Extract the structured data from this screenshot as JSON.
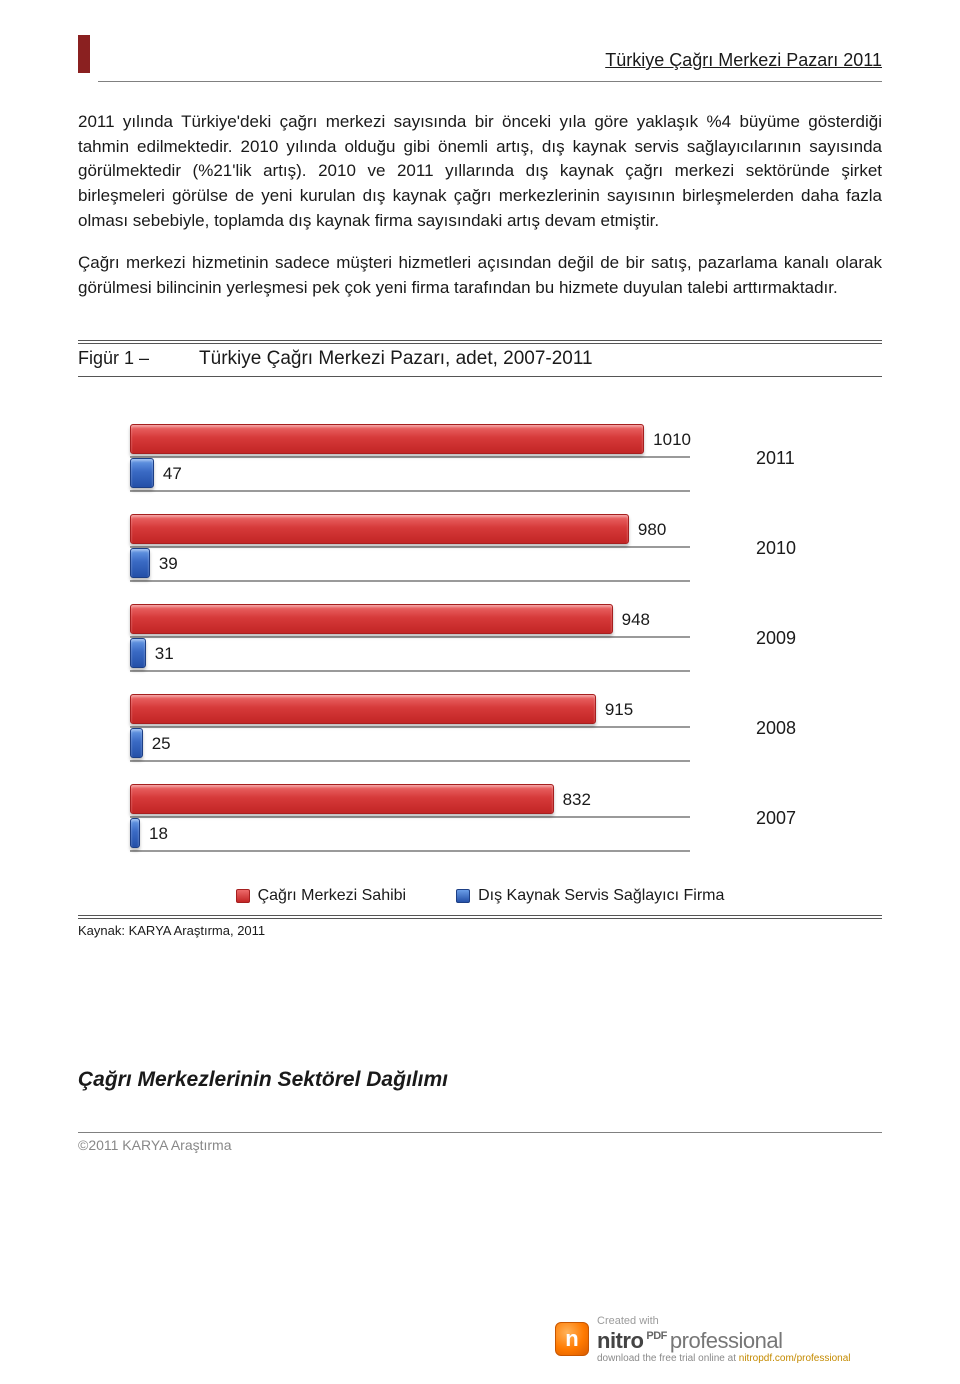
{
  "header": {
    "title": "Türkiye Çağrı Merkezi Pazarı 2011"
  },
  "paragraphs": {
    "p1": "2011 yılında Türkiye'deki çağrı merkezi sayısında bir önceki yıla göre yaklaşık %4 büyüme gösterdiği tahmin edilmektedir. 2010 yılında olduğu gibi önemli artış, dış kaynak servis sağlayıcılarının sayısında görülmektedir (%21'lik artış). 2010 ve 2011 yıllarında dış kaynak çağrı merkezi sektöründe şirket birleşmeleri görülse de yeni kurulan dış kaynak çağrı merkezlerinin sayısının birleşmelerden daha fazla olması sebebiyle, toplamda dış kaynak firma sayısındaki artış devam etmiştir.",
    "p2": "Çağrı merkezi hizmetinin sadece müşteri hizmetleri açısından değil de bir satış, pazarlama kanalı olarak görülmesi bilincinin yerleşmesi pek çok yeni firma tarafından bu hizmete duyulan talebi arttırmaktadır."
  },
  "figure": {
    "label": "Figür 1 –",
    "title": "Türkiye Çağrı Merkezi Pazarı, adet, 2007-2011",
    "source": "Kaynak: KARYA Araştırma, 2011"
  },
  "chart": {
    "type": "bar-horizontal-grouped",
    "xmax": 1100,
    "track_border_color": "#9a9a9a",
    "series": [
      {
        "key": "sahibi",
        "label": "Çağrı Merkezi Sahibi",
        "color": "#d63a3a"
      },
      {
        "key": "dis",
        "label": "Dış Kaynak Servis Sağlayıcı Firma",
        "color": "#3a6ac4"
      }
    ],
    "rows": [
      {
        "year": "2011",
        "sahibi": 1010,
        "dis": 47
      },
      {
        "year": "2010",
        "sahibi": 980,
        "dis": 39
      },
      {
        "year": "2009",
        "sahibi": 948,
        "dis": 31
      },
      {
        "year": "2008",
        "sahibi": 915,
        "dis": 25
      },
      {
        "year": "2007",
        "sahibi": 832,
        "dis": 18
      }
    ]
  },
  "section": {
    "heading": "Çağrı Merkezlerinin Sektörel Dağılımı"
  },
  "footer": {
    "copyright": "©2011 KARYA Araştırma"
  },
  "watermark": {
    "created": "Created with",
    "brand_main": "nitro",
    "brand_pdf": "PDF",
    "brand_pro": "professional",
    "sub_prefix": "download the free trial online at ",
    "sub_link": "nitropdf.com/professional"
  }
}
